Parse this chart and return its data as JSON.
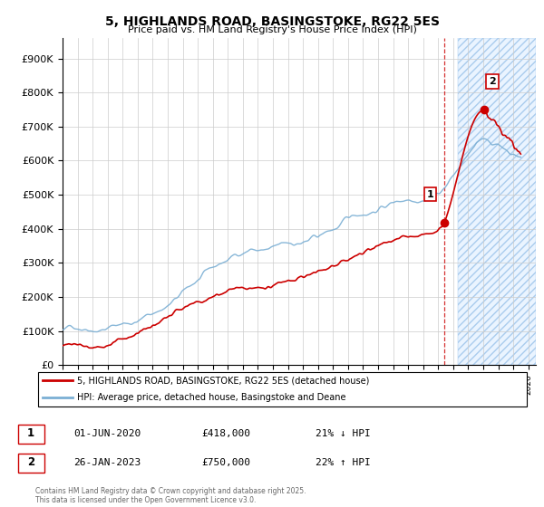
{
  "title": "5, HIGHLANDS ROAD, BASINGSTOKE, RG22 5ES",
  "subtitle": "Price paid vs. HM Land Registry's House Price Index (HPI)",
  "ylabel_ticks": [
    "£0",
    "£100K",
    "£200K",
    "£300K",
    "£400K",
    "£500K",
    "£600K",
    "£700K",
    "£800K",
    "£900K"
  ],
  "ytick_values": [
    0,
    100000,
    200000,
    300000,
    400000,
    500000,
    600000,
    700000,
    800000,
    900000
  ],
  "ylim": [
    0,
    960000
  ],
  "xlim_start": 1995.0,
  "xlim_end": 2026.5,
  "red_color": "#cc0000",
  "blue_color": "#7bafd4",
  "marker1_date": 2020.42,
  "marker1_value": 418000,
  "marker1_label": "1",
  "marker2_date": 2023.07,
  "marker2_value": 750000,
  "marker2_label": "2",
  "shade_start": 2021.3,
  "shade_end": 2026.5,
  "legend_line1": "5, HIGHLANDS ROAD, BASINGSTOKE, RG22 5ES (detached house)",
  "legend_line2": "HPI: Average price, detached house, Basingstoke and Deane",
  "table_row1": [
    "1",
    "01-JUN-2020",
    "£418,000",
    "21% ↓ HPI"
  ],
  "table_row2": [
    "2",
    "26-JAN-2023",
    "£750,000",
    "22% ↑ HPI"
  ],
  "footnote": "Contains HM Land Registry data © Crown copyright and database right 2025.\nThis data is licensed under the Open Government Licence v3.0.",
  "background_color": "#ffffff",
  "grid_color": "#cccccc",
  "shade_color": "#ddeeff"
}
